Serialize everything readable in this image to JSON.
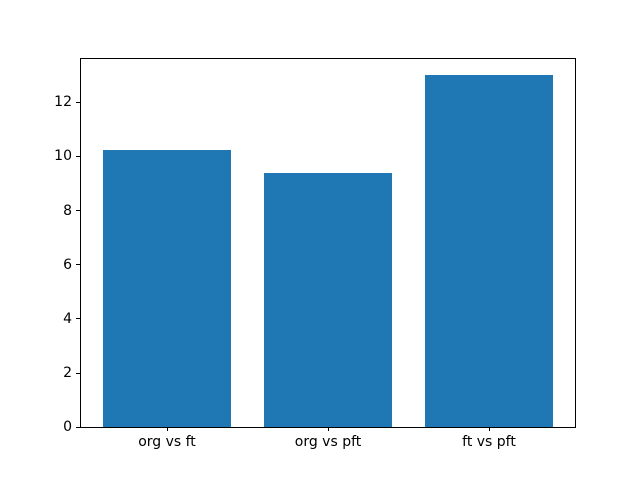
{
  "figure": {
    "background_color": "#ffffff",
    "frame_color": "#000000",
    "tick_label_color": "#000000"
  },
  "chart_data": {
    "type": "bar",
    "categories": [
      "org vs ft",
      "org vs pft",
      "ft vs pft"
    ],
    "values": [
      10.24,
      9.38,
      13.0
    ],
    "yticks": [
      0,
      2,
      4,
      6,
      8,
      10,
      12
    ],
    "ytick_labels": [
      "0",
      "2",
      "4",
      "6",
      "8",
      "10",
      "12"
    ],
    "ylim": [
      0,
      13.65
    ],
    "xlim": [
      -0.54,
      2.54
    ],
    "bar_centers": [
      0,
      1,
      2
    ],
    "bar_width": 0.8,
    "bar_color": "#1f77b4",
    "grid": false,
    "legend": false,
    "title": "",
    "xlabel": "",
    "ylabel": ""
  }
}
